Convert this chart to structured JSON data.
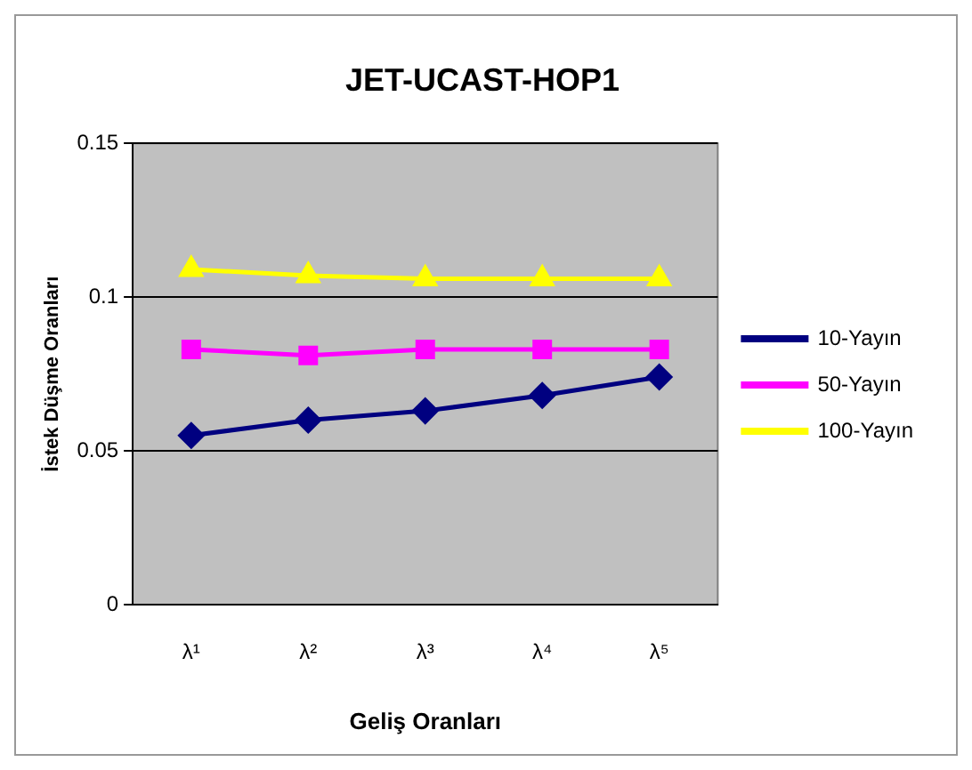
{
  "chart_data": {
    "type": "line",
    "title": "JET-UCAST-HOP1",
    "xlabel": "Geliş Oranları",
    "ylabel": "İstek Düşme Oranları",
    "categories": [
      "λ¹",
      "λ²",
      "λ³",
      "λ⁴",
      "λ⁵"
    ],
    "series": [
      {
        "name": "10-Yayın",
        "color": "#000080",
        "marker": "diamond",
        "values": [
          0.055,
          0.06,
          0.063,
          0.068,
          0.074
        ]
      },
      {
        "name": "50-Yayın",
        "color": "#ff00ff",
        "marker": "square",
        "values": [
          0.083,
          0.081,
          0.083,
          0.083,
          0.083
        ]
      },
      {
        "name": "100-Yayın",
        "color": "#ffff00",
        "marker": "triangle",
        "values": [
          0.109,
          0.107,
          0.106,
          0.106,
          0.106
        ]
      }
    ],
    "ylim": [
      0,
      0.15
    ],
    "yticks": [
      0,
      0.05,
      0.1,
      0.15
    ],
    "grid": "y",
    "legend": "right",
    "line_style": "solid"
  }
}
